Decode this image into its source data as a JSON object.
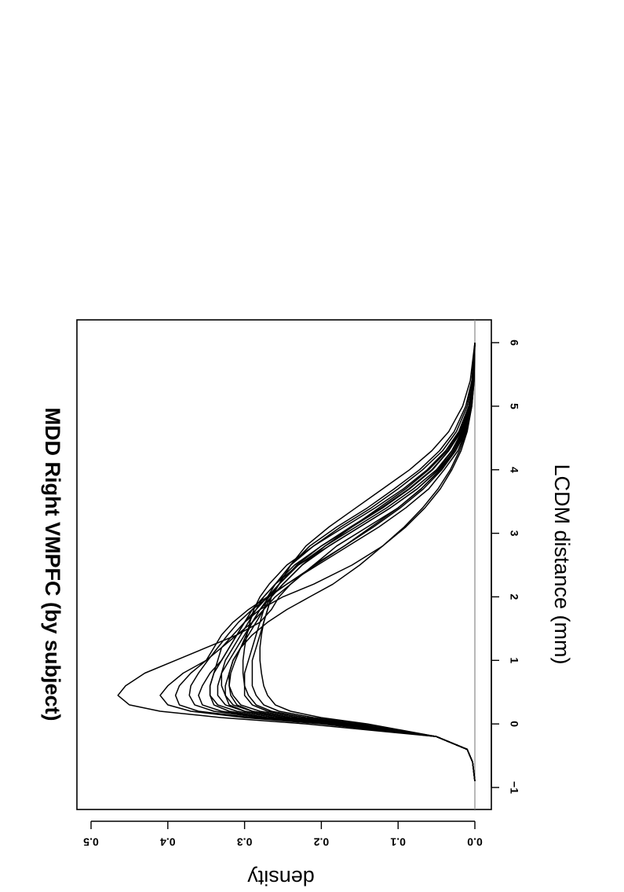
{
  "chart_data": {
    "type": "line",
    "title": "MDD Right VMPFC (by subject)",
    "xlabel": "LCDM distance (mm)",
    "ylabel": "density",
    "xlim": [
      -1.2,
      6.3
    ],
    "ylim": [
      0,
      0.52
    ],
    "x_ticks": [
      -1,
      0,
      1,
      2,
      3,
      4,
      5,
      6
    ],
    "y_ticks": [
      "0.0",
      "0.1",
      "0.2",
      "0.3",
      "0.4",
      "0.5"
    ],
    "orientation": "rotated 90 degrees clockwise",
    "reference_line": 0,
    "series_description": "Density curves, one per subject",
    "series": [
      {
        "x": [
          -0.9,
          -0.6,
          -0.4,
          -0.2,
          0,
          0.1,
          0.2,
          0.3,
          0.45,
          0.6,
          0.8,
          1.0,
          1.2,
          1.4,
          1.6,
          1.8,
          2.0,
          2.2,
          2.5,
          2.8,
          3.1,
          3.4,
          3.7,
          4.0,
          4.3,
          4.6,
          5.0,
          5.4,
          6.0
        ],
        "y": [
          0,
          0.003,
          0.01,
          0.05,
          0.22,
          0.33,
          0.41,
          0.45,
          0.465,
          0.455,
          0.43,
          0.39,
          0.35,
          0.31,
          0.28,
          0.265,
          0.255,
          0.24,
          0.21,
          0.17,
          0.135,
          0.1,
          0.07,
          0.045,
          0.025,
          0.012,
          0.005,
          0.002,
          0
        ]
      },
      {
        "x": [
          -0.9,
          -0.6,
          -0.4,
          -0.2,
          0,
          0.1,
          0.2,
          0.3,
          0.45,
          0.6,
          0.8,
          1.0,
          1.2,
          1.4,
          1.6,
          1.8,
          2.0,
          2.2,
          2.5,
          2.8,
          3.1,
          3.4,
          3.7,
          4.0,
          4.3,
          4.6,
          5.0,
          5.4,
          6.0
        ],
        "y": [
          0,
          0.003,
          0.01,
          0.05,
          0.2,
          0.3,
          0.37,
          0.4,
          0.41,
          0.4,
          0.38,
          0.35,
          0.33,
          0.31,
          0.29,
          0.275,
          0.26,
          0.24,
          0.21,
          0.18,
          0.14,
          0.1,
          0.07,
          0.045,
          0.028,
          0.015,
          0.006,
          0.002,
          0
        ]
      },
      {
        "x": [
          -0.9,
          -0.6,
          -0.4,
          -0.2,
          0,
          0.1,
          0.2,
          0.3,
          0.45,
          0.6,
          0.8,
          1.0,
          1.2,
          1.4,
          1.6,
          1.8,
          2.0,
          2.2,
          2.5,
          2.8,
          3.1,
          3.4,
          3.7,
          4.0,
          4.3,
          4.6,
          5.0,
          5.4,
          6.0
        ],
        "y": [
          0,
          0.003,
          0.01,
          0.05,
          0.19,
          0.29,
          0.36,
          0.385,
          0.39,
          0.385,
          0.37,
          0.35,
          0.34,
          0.33,
          0.315,
          0.295,
          0.27,
          0.245,
          0.205,
          0.165,
          0.125,
          0.09,
          0.06,
          0.04,
          0.022,
          0.012,
          0.005,
          0.002,
          0
        ]
      },
      {
        "x": [
          -0.9,
          -0.6,
          -0.4,
          -0.2,
          0,
          0.1,
          0.2,
          0.3,
          0.45,
          0.6,
          0.8,
          1.0,
          1.2,
          1.4,
          1.6,
          1.8,
          2.0,
          2.2,
          2.5,
          2.8,
          3.1,
          3.4,
          3.7,
          4.0,
          4.3,
          4.6,
          5.0,
          5.4,
          6.0
        ],
        "y": [
          0,
          0.003,
          0.01,
          0.05,
          0.18,
          0.27,
          0.33,
          0.355,
          0.36,
          0.355,
          0.345,
          0.33,
          0.32,
          0.31,
          0.3,
          0.29,
          0.275,
          0.26,
          0.23,
          0.19,
          0.15,
          0.11,
          0.075,
          0.048,
          0.03,
          0.017,
          0.007,
          0.002,
          0
        ]
      },
      {
        "x": [
          -0.9,
          -0.6,
          -0.4,
          -0.2,
          0,
          0.1,
          0.2,
          0.3,
          0.45,
          0.6,
          0.8,
          1.0,
          1.2,
          1.4,
          1.6,
          1.8,
          2.0,
          2.2,
          2.5,
          2.8,
          3.1,
          3.4,
          3.7,
          4.0,
          4.3,
          4.6,
          5.0,
          5.4,
          6.0
        ],
        "y": [
          0,
          0.003,
          0.01,
          0.05,
          0.17,
          0.26,
          0.31,
          0.335,
          0.345,
          0.345,
          0.34,
          0.33,
          0.32,
          0.31,
          0.3,
          0.285,
          0.27,
          0.255,
          0.23,
          0.195,
          0.155,
          0.115,
          0.08,
          0.05,
          0.03,
          0.016,
          0.006,
          0.002,
          0
        ]
      },
      {
        "x": [
          -0.9,
          -0.6,
          -0.4,
          -0.2,
          0,
          0.1,
          0.2,
          0.3,
          0.45,
          0.6,
          0.8,
          1.0,
          1.2,
          1.4,
          1.6,
          1.8,
          2.0,
          2.2,
          2.5,
          2.8,
          3.1,
          3.4,
          3.7,
          4.0,
          4.3,
          4.6,
          5.0,
          5.4,
          6.0
        ],
        "y": [
          0,
          0.003,
          0.01,
          0.05,
          0.16,
          0.24,
          0.29,
          0.315,
          0.325,
          0.33,
          0.33,
          0.325,
          0.315,
          0.305,
          0.295,
          0.285,
          0.275,
          0.26,
          0.235,
          0.2,
          0.16,
          0.12,
          0.085,
          0.055,
          0.034,
          0.019,
          0.008,
          0.003,
          0
        ]
      },
      {
        "x": [
          -0.9,
          -0.6,
          -0.4,
          -0.2,
          0,
          0.1,
          0.2,
          0.3,
          0.45,
          0.6,
          0.8,
          1.0,
          1.2,
          1.4,
          1.6,
          1.8,
          2.0,
          2.2,
          2.5,
          2.8,
          3.1,
          3.4,
          3.7,
          4.0,
          4.3,
          4.6,
          5.0,
          5.4,
          6.0
        ],
        "y": [
          0,
          0.003,
          0.01,
          0.05,
          0.16,
          0.23,
          0.28,
          0.305,
          0.315,
          0.32,
          0.32,
          0.315,
          0.305,
          0.295,
          0.285,
          0.275,
          0.265,
          0.25,
          0.225,
          0.195,
          0.16,
          0.125,
          0.09,
          0.06,
          0.036,
          0.02,
          0.008,
          0.003,
          0
        ]
      },
      {
        "x": [
          -0.9,
          -0.6,
          -0.4,
          -0.2,
          0,
          0.1,
          0.2,
          0.3,
          0.45,
          0.6,
          0.8,
          1.0,
          1.2,
          1.4,
          1.6,
          1.8,
          2.0,
          2.2,
          2.5,
          2.8,
          3.1,
          3.4,
          3.7,
          4.0,
          4.3,
          4.6,
          5.0,
          5.4,
          6.0
        ],
        "y": [
          0,
          0.003,
          0.01,
          0.05,
          0.15,
          0.22,
          0.27,
          0.29,
          0.3,
          0.3,
          0.3,
          0.295,
          0.29,
          0.285,
          0.28,
          0.275,
          0.27,
          0.26,
          0.24,
          0.21,
          0.175,
          0.135,
          0.1,
          0.068,
          0.042,
          0.024,
          0.01,
          0.004,
          0
        ]
      },
      {
        "x": [
          -0.9,
          -0.6,
          -0.4,
          -0.2,
          0,
          0.1,
          0.2,
          0.3,
          0.45,
          0.6,
          0.8,
          1.0,
          1.2,
          1.4,
          1.6,
          1.8,
          2.0,
          2.2,
          2.5,
          2.8,
          3.1,
          3.4,
          3.7,
          4.0,
          4.3,
          4.6,
          5.0,
          5.4,
          6.0
        ],
        "y": [
          0,
          0.003,
          0.01,
          0.05,
          0.15,
          0.21,
          0.255,
          0.275,
          0.285,
          0.29,
          0.29,
          0.29,
          0.285,
          0.28,
          0.275,
          0.27,
          0.265,
          0.255,
          0.24,
          0.215,
          0.18,
          0.14,
          0.105,
          0.072,
          0.046,
          0.027,
          0.012,
          0.004,
          0
        ]
      },
      {
        "x": [
          -0.9,
          -0.6,
          -0.4,
          -0.2,
          0,
          0.1,
          0.2,
          0.3,
          0.45,
          0.6,
          0.8,
          1.0,
          1.2,
          1.4,
          1.6,
          1.8,
          2.0,
          2.2,
          2.5,
          2.8,
          3.1,
          3.4,
          3.7,
          4.0,
          4.3,
          4.6,
          5.0,
          5.4,
          6.0
        ],
        "y": [
          0,
          0.003,
          0.01,
          0.05,
          0.14,
          0.2,
          0.24,
          0.26,
          0.27,
          0.275,
          0.278,
          0.28,
          0.28,
          0.278,
          0.275,
          0.27,
          0.265,
          0.255,
          0.24,
          0.22,
          0.19,
          0.155,
          0.12,
          0.085,
          0.056,
          0.034,
          0.016,
          0.006,
          0
        ]
      },
      {
        "x": [
          -0.9,
          -0.6,
          -0.4,
          -0.2,
          0,
          0.1,
          0.2,
          0.3,
          0.45,
          0.6,
          0.8,
          1.0,
          1.2,
          1.4,
          1.6,
          1.8,
          2.0,
          2.2,
          2.5,
          2.8,
          3.1,
          3.4,
          3.7,
          4.0,
          4.3,
          4.6,
          5.0,
          5.4,
          6.0
        ],
        "y": [
          0,
          0.003,
          0.01,
          0.05,
          0.18,
          0.27,
          0.32,
          0.34,
          0.345,
          0.345,
          0.34,
          0.335,
          0.33,
          0.315,
          0.3,
          0.28,
          0.25,
          0.21,
          0.16,
          0.12,
          0.09,
          0.065,
          0.045,
          0.03,
          0.018,
          0.01,
          0.004,
          0.001,
          0
        ]
      },
      {
        "x": [
          -0.9,
          -0.6,
          -0.4,
          -0.2,
          0,
          0.1,
          0.2,
          0.3,
          0.45,
          0.6,
          0.8,
          1.0,
          1.2,
          1.4,
          1.6,
          1.8,
          2.0,
          2.2,
          2.5,
          2.8,
          3.1,
          3.4,
          3.7,
          4.0,
          4.3,
          4.6,
          5.0,
          5.4,
          6.0
        ],
        "y": [
          0,
          0.003,
          0.01,
          0.05,
          0.17,
          0.25,
          0.3,
          0.32,
          0.325,
          0.325,
          0.32,
          0.315,
          0.305,
          0.29,
          0.27,
          0.245,
          0.215,
          0.185,
          0.15,
          0.12,
          0.092,
          0.068,
          0.048,
          0.032,
          0.02,
          0.011,
          0.004,
          0.001,
          0
        ]
      },
      {
        "x": [
          -0.9,
          -0.6,
          -0.4,
          -0.2,
          0,
          0.1,
          0.2,
          0.3,
          0.45,
          0.6,
          0.8,
          1.0,
          1.2,
          1.4,
          1.6,
          1.8,
          2.0,
          2.2,
          2.5,
          2.8,
          3.1,
          3.4,
          3.7,
          4.0,
          4.3,
          4.6,
          5.0,
          5.4,
          6.0
        ],
        "y": [
          0,
          0.003,
          0.01,
          0.05,
          0.17,
          0.25,
          0.3,
          0.325,
          0.335,
          0.335,
          0.33,
          0.32,
          0.31,
          0.3,
          0.29,
          0.28,
          0.265,
          0.25,
          0.225,
          0.19,
          0.15,
          0.11,
          0.075,
          0.047,
          0.027,
          0.014,
          0.005,
          0.002,
          0
        ]
      },
      {
        "x": [
          -0.9,
          -0.6,
          -0.4,
          -0.2,
          0,
          0.1,
          0.2,
          0.3,
          0.45,
          0.6,
          0.8,
          1.0,
          1.2,
          1.4,
          1.6,
          1.8,
          2.0,
          2.2,
          2.5,
          2.8,
          3.1,
          3.4,
          3.7,
          4.0,
          4.3,
          4.6,
          5.0,
          5.4,
          6.0
        ],
        "y": [
          0,
          0.003,
          0.01,
          0.05,
          0.16,
          0.24,
          0.29,
          0.31,
          0.318,
          0.32,
          0.318,
          0.312,
          0.305,
          0.298,
          0.29,
          0.28,
          0.268,
          0.255,
          0.232,
          0.2,
          0.162,
          0.122,
          0.086,
          0.056,
          0.034,
          0.018,
          0.007,
          0.002,
          0
        ]
      },
      {
        "x": [
          -0.9,
          -0.6,
          -0.4,
          -0.2,
          0,
          0.1,
          0.2,
          0.3,
          0.45,
          0.6,
          0.8,
          1.0,
          1.2,
          1.4,
          1.6,
          1.8,
          2.0,
          2.2,
          2.5,
          2.8,
          3.1,
          3.4,
          3.7,
          4.0,
          4.3,
          4.6,
          5.0,
          5.4,
          6.0
        ],
        "y": [
          0,
          0.003,
          0.01,
          0.05,
          0.15,
          0.22,
          0.265,
          0.285,
          0.295,
          0.3,
          0.302,
          0.302,
          0.3,
          0.297,
          0.293,
          0.288,
          0.28,
          0.268,
          0.245,
          0.21,
          0.17,
          0.13,
          0.093,
          0.062,
          0.038,
          0.021,
          0.008,
          0.003,
          0
        ]
      },
      {
        "x": [
          -0.9,
          -0.6,
          -0.4,
          -0.2,
          0,
          0.1,
          0.2,
          0.3,
          0.45,
          0.6,
          0.8,
          1.0,
          1.2,
          1.4,
          1.6,
          1.8,
          2.0,
          2.2,
          2.5,
          2.8,
          3.1,
          3.4,
          3.7,
          4.0,
          4.3,
          4.6,
          5.0,
          5.4,
          6.0
        ],
        "y": [
          0,
          0.003,
          0.01,
          0.05,
          0.19,
          0.28,
          0.34,
          0.365,
          0.372,
          0.37,
          0.36,
          0.348,
          0.335,
          0.322,
          0.308,
          0.29,
          0.268,
          0.245,
          0.208,
          0.17,
          0.132,
          0.097,
          0.067,
          0.043,
          0.025,
          0.013,
          0.005,
          0.002,
          0
        ]
      }
    ]
  }
}
